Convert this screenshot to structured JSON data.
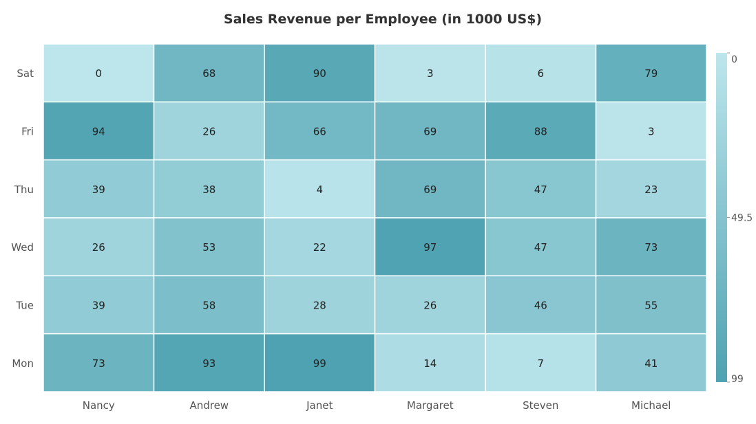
{
  "chart_data": {
    "type": "heatmap",
    "title": "Sales Revenue per Employee (in 1000 US$)",
    "x_categories": [
      "Nancy",
      "Andrew",
      "Janet",
      "Margaret",
      "Steven",
      "Michael"
    ],
    "y_categories": [
      "Sat",
      "Fri",
      "Thu",
      "Wed",
      "Tue",
      "Mon"
    ],
    "values": [
      [
        0,
        68,
        90,
        3,
        6,
        79
      ],
      [
        94,
        26,
        66,
        69,
        88,
        3
      ],
      [
        39,
        38,
        4,
        69,
        47,
        23
      ],
      [
        26,
        53,
        22,
        97,
        47,
        73
      ],
      [
        39,
        58,
        28,
        26,
        46,
        55
      ],
      [
        73,
        93,
        99,
        14,
        7,
        41
      ]
    ],
    "legend": {
      "position": "right",
      "min": 0,
      "mid": 49.5,
      "max": 99,
      "labels": [
        "0",
        "49.5",
        "99"
      ]
    },
    "colors": {
      "low": "#bde6ec",
      "high": "#4ea2b1",
      "cell_border": "#ffffff",
      "text": "#222222",
      "axis_text": "#555555",
      "title_text": "#333333"
    },
    "grid": false
  }
}
